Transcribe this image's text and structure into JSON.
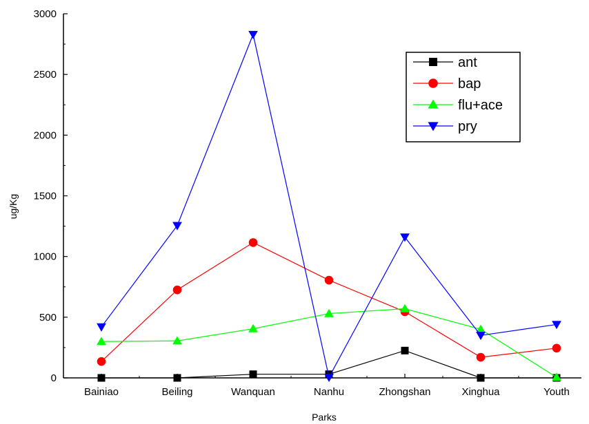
{
  "chart_data": {
    "type": "line",
    "xlabel": "Parks",
    "ylabel": "ug/Kg",
    "categories": [
      "Bainiao",
      "Beiling",
      "Wanquan",
      "Nanhu",
      "Zhongshan",
      "Xinghua",
      "Youth"
    ],
    "ylim": [
      0,
      3000
    ],
    "yticks": [
      0,
      500,
      1000,
      1500,
      2000,
      2500,
      3000
    ],
    "grid": false,
    "legend_position": "top-right",
    "series": [
      {
        "name": "ant",
        "color": "#000000",
        "marker": "square",
        "values": [
          0,
          0,
          30,
          30,
          225,
          0,
          0
        ]
      },
      {
        "name": "bap",
        "color": "#ff0000",
        "marker": "circle",
        "values": [
          135,
          725,
          1115,
          805,
          545,
          170,
          245
        ]
      },
      {
        "name": "flu+ace",
        "color": "#00ff00",
        "marker": "triangle-up",
        "values": [
          300,
          305,
          405,
          530,
          570,
          400,
          5
        ]
      },
      {
        "name": "pry",
        "color": "#0000ff",
        "marker": "triangle-down",
        "values": [
          420,
          1255,
          2830,
          5,
          1160,
          350,
          440
        ]
      }
    ]
  }
}
